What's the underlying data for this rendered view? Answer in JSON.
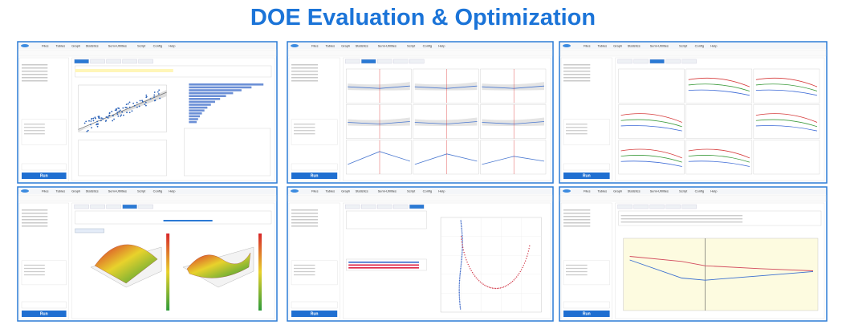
{
  "title": "DOE Evaluation & Optimization",
  "menu": [
    "Files",
    "Tables",
    "Graph",
    "Statistics",
    "Semi-Utilities",
    "Script",
    "Config",
    "Help"
  ],
  "run_button": "Run"
}
